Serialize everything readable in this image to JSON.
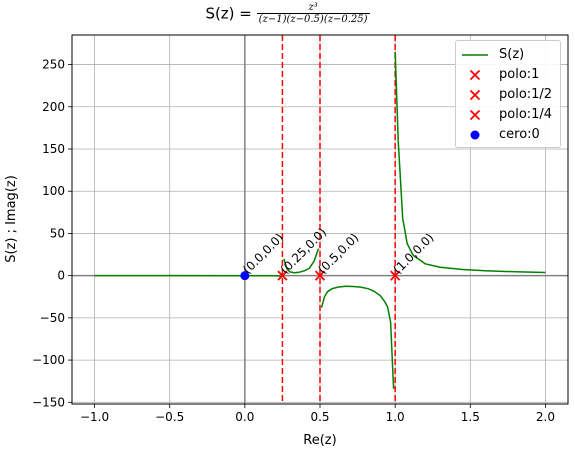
{
  "chart_data": {
    "type": "line",
    "title": {
      "prefix": "S(z) = ",
      "numerator": "z³",
      "denominator": "(z−1)(z−0.5)(z−0.25)"
    },
    "xlabel": "Re(z)",
    "ylabel": "S(z) ; Imag(z)",
    "xlim": [
      -1.15,
      2.15
    ],
    "ylim": [
      -152,
      285
    ],
    "xticks": [
      -1.0,
      -0.5,
      0.0,
      0.5,
      1.0,
      1.5,
      2.0
    ],
    "yticks": [
      -150,
      -100,
      -50,
      0,
      50,
      100,
      150,
      200,
      250
    ],
    "xtick_labels": [
      "−1.0",
      "−0.5",
      "0.0",
      "0.5",
      "1.0",
      "1.5",
      "2.0"
    ],
    "ytick_labels": [
      "−150",
      "−100",
      "−50",
      "0",
      "50",
      "100",
      "150",
      "200",
      "250"
    ],
    "grid": true,
    "legend_position": "top-right",
    "colors": {
      "curve": "#008000",
      "pole": "#ff0000",
      "zero": "#0000ff",
      "axis_lines": "#808080",
      "grid": "#b0b0b0"
    },
    "series": [
      {
        "name": "S(z)",
        "kind": "line",
        "segments": [
          {
            "x": [
              -1.0,
              -0.5,
              0.0,
              0.1,
              0.2,
              0.22,
              0.24
            ],
            "y": [
              0.04,
              0.01,
              0.0,
              0.0,
              -0.1,
              -0.3,
              -0.8
            ]
          },
          {
            "x": [
              0.26,
              0.28,
              0.3,
              0.33,
              0.36,
              0.4,
              0.43,
              0.46,
              0.48,
              0.49
            ],
            "y": [
              20.0,
              8.0,
              4.5,
              3.5,
              4.0,
              6.0,
              9.0,
              17.0,
              27.0,
              32.0
            ]
          },
          {
            "x": [
              0.51,
              0.53,
              0.55,
              0.58,
              0.62,
              0.67,
              0.72,
              0.77,
              0.82,
              0.86,
              0.9,
              0.93,
              0.95,
              0.97,
              0.99
            ],
            "y": [
              -38,
              -25,
              -19,
              -15.5,
              -13.5,
              -12.5,
              -12.8,
              -13.5,
              -15.5,
              -18.5,
              -23.5,
              -30.5,
              -37,
              -55,
              -134
            ]
          },
          {
            "x": [
              1.0,
              1.02,
              1.05,
              1.08,
              1.12,
              1.2,
              1.3,
              1.45,
              1.6,
              1.8,
              2.0
            ],
            "y": [
              265,
              160,
              68,
              38,
              24,
              14,
              10,
              7.3,
              5.8,
              4.6,
              3.7
            ]
          }
        ]
      },
      {
        "name": "polo:1",
        "kind": "marker-x",
        "x": [
          1.0
        ],
        "y": [
          0
        ]
      },
      {
        "name": "polo:1/2",
        "kind": "marker-x",
        "x": [
          0.5
        ],
        "y": [
          0
        ]
      },
      {
        "name": "polo:1/4",
        "kind": "marker-x",
        "x": [
          0.25
        ],
        "y": [
          0
        ]
      },
      {
        "name": "cero:0",
        "kind": "marker-dot",
        "x": [
          0.0
        ],
        "y": [
          0
        ]
      }
    ],
    "asymptotes_x": [
      0.25,
      0.5,
      1.0
    ],
    "annotations": [
      {
        "text": "(0.0,0.0)",
        "x": 0.0,
        "y": 0
      },
      {
        "text": "(0.25,0.0)",
        "x": 0.25,
        "y": 0
      },
      {
        "text": "(0.5,0.0)",
        "x": 0.5,
        "y": 0
      },
      {
        "text": "(1.0,0.0)",
        "x": 1.0,
        "y": 0
      }
    ]
  }
}
